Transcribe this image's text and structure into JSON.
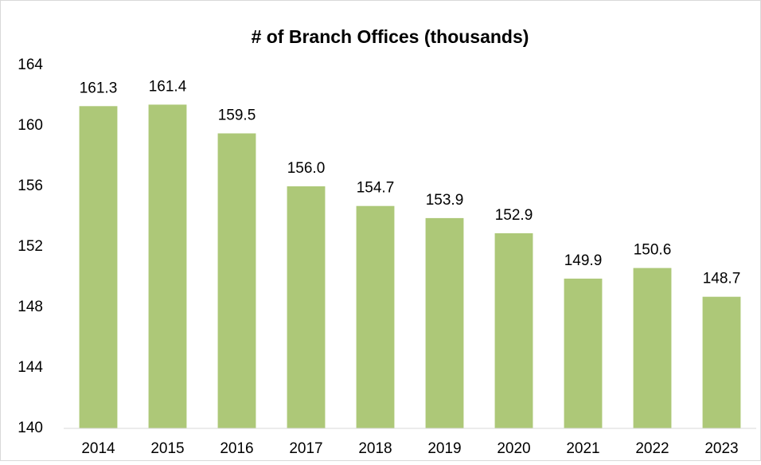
{
  "chart_data": {
    "type": "bar",
    "title": "# of Branch Offices (thousands)",
    "categories": [
      "2014",
      "2015",
      "2016",
      "2017",
      "2018",
      "2019",
      "2020",
      "2021",
      "2022",
      "2023"
    ],
    "values": [
      161.3,
      161.4,
      159.5,
      156.0,
      154.7,
      153.9,
      152.9,
      149.9,
      150.6,
      148.7
    ],
    "value_labels": [
      "161.3",
      "161.4",
      "159.5",
      "156.0",
      "154.7",
      "153.9",
      "152.9",
      "149.9",
      "150.6",
      "148.7"
    ],
    "color": "#adc878",
    "ylim": [
      140,
      164
    ],
    "yticks": [
      140,
      144,
      148,
      152,
      156,
      160,
      164
    ],
    "grid": false
  }
}
